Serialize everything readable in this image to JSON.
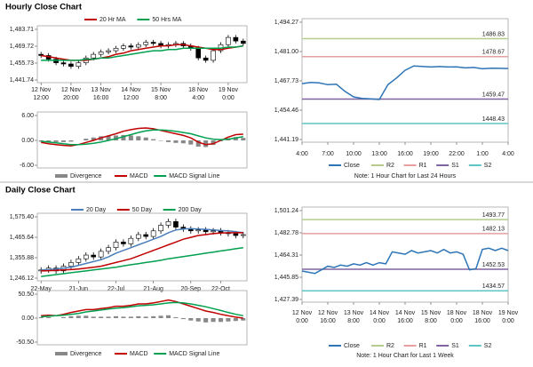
{
  "sections": {
    "hourly": "Hourly Close Chart",
    "daily": "Daily Close Chart"
  },
  "chart_data": [
    {
      "type": "candlestick",
      "open": [
        1463,
        1462,
        1459,
        1456,
        1455,
        1453,
        1456,
        1460,
        1463,
        1465,
        1466,
        1468,
        1470,
        1469,
        1471,
        1473,
        1472,
        1470,
        1471,
        1472,
        1470,
        1468,
        1460,
        1458,
        1466,
        1471,
        1477,
        1474
      ],
      "high": [
        1465,
        1464,
        1461,
        1458,
        1457,
        1458,
        1462,
        1465,
        1467,
        1468,
        1470,
        1472,
        1472,
        1473,
        1475,
        1475,
        1474,
        1473,
        1474,
        1474,
        1472,
        1470,
        1462,
        1468,
        1473,
        1479,
        1479,
        1476
      ],
      "low": [
        1460,
        1457,
        1454,
        1453,
        1451,
        1451,
        1454,
        1458,
        1461,
        1463,
        1464,
        1466,
        1467,
        1467,
        1469,
        1470,
        1468,
        1468,
        1469,
        1468,
        1466,
        1458,
        1456,
        1456,
        1464,
        1469,
        1472,
        1470
      ],
      "close": [
        1462,
        1459,
        1456,
        1455,
        1453,
        1456,
        1460,
        1463,
        1465,
        1466,
        1468,
        1470,
        1469,
        1471,
        1473,
        1472,
        1470,
        1471,
        1472,
        1470,
        1468,
        1460,
        1458,
        1466,
        1471,
        1477,
        1474,
        1472
      ],
      "series": [
        {
          "name": "20 Hr MA",
          "color": "#c00000",
          "values": [
            1462,
            1461,
            1460,
            1459,
            1458,
            1458,
            1458,
            1459,
            1460,
            1461,
            1463,
            1464,
            1466,
            1467,
            1468,
            1469,
            1470,
            1470,
            1471,
            1471,
            1470,
            1469,
            1468,
            1467,
            1467,
            1468,
            1469,
            1470
          ]
        },
        {
          "name": "50 Hrs MA",
          "color": "#00a050",
          "values": [
            1458,
            1458,
            1458,
            1458,
            1458,
            1458,
            1459,
            1459,
            1460,
            1460,
            1461,
            1462,
            1463,
            1464,
            1465,
            1466,
            1466,
            1467,
            1467,
            1468,
            1468,
            1468,
            1468,
            1468,
            1468,
            1469,
            1469,
            1470
          ]
        }
      ],
      "ylim": [
        1441.74,
        1483.71
      ],
      "yticks": [
        {
          "value": 1483.71,
          "label": "1,483.71"
        },
        {
          "value": 1469.72,
          "label": "1,469.72"
        },
        {
          "value": 1455.73,
          "label": "1,455.73"
        },
        {
          "value": 1441.74,
          "label": "1,441.74"
        }
      ],
      "xticks": [
        {
          "value": 0,
          "label": [
            "12 Nov",
            "12:00"
          ]
        },
        {
          "value": 4,
          "label": [
            "12 Nov",
            "20:00"
          ]
        },
        {
          "value": 8,
          "label": [
            "13 Nov",
            "16:00"
          ]
        },
        {
          "value": 12,
          "label": [
            "14 Nov",
            "12:00"
          ]
        },
        {
          "value": 16,
          "label": [
            "15 Nov",
            "8:00"
          ]
        },
        {
          "value": 21,
          "label": [
            "18 Nov",
            "4:00"
          ]
        },
        {
          "value": 25,
          "label": [
            "19 Nov",
            "0:00"
          ]
        }
      ],
      "candle_color": "#000000"
    },
    {
      "type": "macd",
      "series": [
        {
          "name": "Divergence",
          "color": "#888888",
          "style": "bar",
          "values": [
            -0.3,
            -0.4,
            -0.4,
            -0.4,
            -0.3,
            0,
            0.4,
            0.7,
            1,
            1.1,
            1.2,
            1.3,
            1.2,
            1,
            0.7,
            0.3,
            -0.1,
            -0.4,
            -0.6,
            -0.7,
            -1,
            -1.5,
            -1.6,
            -1.1,
            -0.2,
            0.5,
            0.8,
            0.6
          ]
        },
        {
          "name": "MACD",
          "color": "#c00000",
          "style": "line",
          "values": [
            -0.5,
            -0.8,
            -1,
            -1.2,
            -1.3,
            -1,
            -0.5,
            0,
            0.6,
            1.1,
            1.6,
            2.2,
            2.6,
            2.9,
            3,
            2.8,
            2.4,
            2,
            1.6,
            1.2,
            0.6,
            -0.4,
            -1,
            -0.8,
            0,
            0.8,
            1.4,
            1.5
          ]
        },
        {
          "name": "MACD Signal Line",
          "color": "#00a050",
          "style": "line",
          "values": [
            -0.2,
            -0.4,
            -0.6,
            -0.8,
            -1,
            -1,
            -0.9,
            -0.7,
            -0.4,
            0,
            0.4,
            0.9,
            1.4,
            1.9,
            2.3,
            2.5,
            2.5,
            2.4,
            2.2,
            1.9,
            1.6,
            1.1,
            0.6,
            0.3,
            0.2,
            0.3,
            0.6,
            0.9
          ]
        }
      ],
      "ylim": [
        -6,
        6
      ],
      "yticks": [
        {
          "value": 6,
          "label": "6.00"
        },
        {
          "value": 0,
          "label": "0.00"
        },
        {
          "value": -6,
          "label": "-6.00"
        }
      ]
    },
    {
      "type": "line",
      "x": [
        0,
        1,
        2,
        3,
        4,
        5,
        6,
        7,
        8,
        9,
        10,
        11,
        12,
        13,
        14,
        15,
        16,
        17,
        18,
        19,
        20,
        21,
        22,
        23,
        24
      ],
      "series": [
        {
          "name": "Close",
          "color": "#2e75b6",
          "values": [
            1466.5,
            1467,
            1466.8,
            1466,
            1466.2,
            1463,
            1460.5,
            1459.8,
            1459.6,
            1459.3,
            1466,
            1469,
            1472.5,
            1474.5,
            1474.3,
            1474,
            1474.2,
            1474,
            1474.1,
            1473.6,
            1473.8,
            1473.2,
            1473.5,
            1473.4,
            1473.3
          ]
        }
      ],
      "levels": [
        {
          "name": "R2",
          "color": "#b5cc8e",
          "value": 1486.83
        },
        {
          "name": "R1",
          "color": "#e6a0a0",
          "value": 1478.67
        },
        {
          "name": "S1",
          "color": "#8064a2",
          "value": 1459.47
        },
        {
          "name": "S2",
          "color": "#5fc4c4",
          "value": 1448.43
        }
      ],
      "xlim": [
        0,
        24
      ],
      "ylim": [
        1441.19,
        1494.27
      ],
      "yticks": [
        {
          "value": 1494.27,
          "label": "1,494.27"
        },
        {
          "value": 1481.0,
          "label": "1,481.00"
        },
        {
          "value": 1467.73,
          "label": "1,467.73"
        },
        {
          "value": 1454.46,
          "label": "1,454.46"
        },
        {
          "value": 1441.19,
          "label": "1,441.19"
        }
      ],
      "xticks": [
        {
          "value": 0,
          "label": "4:00"
        },
        {
          "value": 3,
          "label": "7:00"
        },
        {
          "value": 6,
          "label": "10:00"
        },
        {
          "value": 9,
          "label": "13:00"
        },
        {
          "value": 12,
          "label": "16:00"
        },
        {
          "value": 15,
          "label": "19:00"
        },
        {
          "value": 18,
          "label": "22:00"
        },
        {
          "value": 21,
          "label": "1:00"
        },
        {
          "value": 24,
          "label": "4:00"
        }
      ],
      "note": "Note: 1 Hour Chart for Last 24 Hours"
    },
    {
      "type": "candlestick",
      "open": [
        1285,
        1290,
        1300,
        1285,
        1310,
        1330,
        1350,
        1370,
        1360,
        1390,
        1410,
        1440,
        1430,
        1460,
        1480,
        1470,
        1500,
        1530,
        1550,
        1520,
        1510,
        1500,
        1505,
        1495,
        1500,
        1490,
        1485,
        1475
      ],
      "high": [
        1305,
        1315,
        1315,
        1325,
        1345,
        1365,
        1385,
        1385,
        1405,
        1425,
        1455,
        1455,
        1475,
        1495,
        1495,
        1515,
        1545,
        1565,
        1565,
        1535,
        1525,
        1520,
        1520,
        1515,
        1515,
        1505,
        1500,
        1495
      ],
      "low": [
        1270,
        1275,
        1270,
        1270,
        1295,
        1315,
        1335,
        1345,
        1345,
        1375,
        1395,
        1415,
        1415,
        1445,
        1455,
        1455,
        1485,
        1515,
        1505,
        1495,
        1485,
        1485,
        1480,
        1480,
        1475,
        1470,
        1460,
        1460
      ],
      "close": [
        1290,
        1300,
        1285,
        1310,
        1330,
        1350,
        1370,
        1360,
        1390,
        1410,
        1440,
        1430,
        1460,
        1480,
        1470,
        1500,
        1530,
        1550,
        1520,
        1510,
        1500,
        1505,
        1495,
        1500,
        1490,
        1485,
        1475,
        1480
      ],
      "series": [
        {
          "name": "20 Day",
          "color": "#4a7ebb",
          "values": [
            1290,
            1292,
            1295,
            1300,
            1305,
            1315,
            1325,
            1335,
            1345,
            1360,
            1380,
            1395,
            1410,
            1425,
            1440,
            1455,
            1470,
            1490,
            1505,
            1510,
            1512,
            1510,
            1508,
            1505,
            1502,
            1500,
            1495,
            1490
          ]
        },
        {
          "name": "50 Day",
          "color": "#c00000",
          "values": [
            1285,
            1286,
            1288,
            1290,
            1292,
            1295,
            1300,
            1305,
            1310,
            1320,
            1330,
            1340,
            1350,
            1365,
            1380,
            1395,
            1410,
            1425,
            1440,
            1455,
            1465,
            1475,
            1480,
            1485,
            1488,
            1490,
            1490,
            1490
          ]
        },
        {
          "name": "200 Day",
          "color": "#00a050",
          "values": [
            1255,
            1260,
            1265,
            1270,
            1275,
            1280,
            1285,
            1290,
            1295,
            1300,
            1305,
            1312,
            1318,
            1324,
            1330,
            1336,
            1342,
            1350,
            1356,
            1362,
            1368,
            1374,
            1380,
            1386,
            1392,
            1398,
            1404,
            1410
          ]
        }
      ],
      "ylim": [
        1246.12,
        1575.4
      ],
      "yticks": [
        {
          "value": 1575.4,
          "label": "1,575.40"
        },
        {
          "value": 1465.64,
          "label": "1,465.64"
        },
        {
          "value": 1355.88,
          "label": "1,355.88"
        },
        {
          "value": 1246.12,
          "label": "1,246.12"
        }
      ],
      "xticks": [
        {
          "value": 0,
          "label": "22-May"
        },
        {
          "value": 5,
          "label": "21-Jun"
        },
        {
          "value": 10,
          "label": "22-Jul"
        },
        {
          "value": 15,
          "label": "21-Aug"
        },
        {
          "value": 20,
          "label": "20-Sep"
        },
        {
          "value": 24,
          "label": "22-Oct"
        }
      ],
      "candle_color": "#000000"
    },
    {
      "type": "macd",
      "series": [
        {
          "name": "Divergence",
          "color": "#888888",
          "style": "bar",
          "values": [
            2,
            2,
            0,
            2,
            4,
            5,
            5,
            3,
            3,
            3,
            4,
            3,
            3,
            4,
            3,
            4,
            5,
            6,
            2,
            -2,
            -5,
            -7,
            -9,
            -8,
            -8,
            -7,
            -6,
            -5
          ]
        },
        {
          "name": "MACD",
          "color": "#c00000",
          "style": "line",
          "values": [
            5,
            6,
            5,
            8,
            12,
            15,
            18,
            18,
            20,
            22,
            25,
            25,
            27,
            30,
            30,
            32,
            35,
            38,
            35,
            30,
            25,
            20,
            15,
            12,
            8,
            5,
            2,
            0
          ]
        },
        {
          "name": "MACD Signal Line",
          "color": "#00a050",
          "style": "line",
          "values": [
            3,
            4,
            5,
            6,
            8,
            10,
            13,
            15,
            17,
            19,
            21,
            22,
            24,
            26,
            27,
            28,
            30,
            32,
            33,
            32,
            30,
            27,
            24,
            20,
            16,
            12,
            8,
            5
          ]
        }
      ],
      "ylim": [
        -50.5,
        50.5
      ],
      "yticks": [
        {
          "value": 50.5,
          "label": "50.50"
        },
        {
          "value": 0,
          "label": "0.00"
        },
        {
          "value": -50.5,
          "label": "-50.50"
        }
      ]
    },
    {
      "type": "line",
      "x": [
        0,
        1,
        2,
        3,
        4,
        5,
        6,
        7,
        8,
        9,
        10,
        11,
        12,
        13,
        14,
        15,
        16,
        17,
        18,
        19,
        20,
        21,
        22,
        23,
        24,
        25,
        26,
        27,
        28,
        29,
        30,
        31,
        32
      ],
      "series": [
        {
          "name": "Close",
          "color": "#2e75b6",
          "values": [
            1451,
            1450,
            1449,
            1452,
            1455,
            1454,
            1456,
            1455,
            1457,
            1456,
            1458,
            1456,
            1458,
            1457,
            1467,
            1466,
            1465,
            1468,
            1466,
            1467,
            1468,
            1466,
            1469,
            1466,
            1467,
            1465,
            1452,
            1453,
            1469,
            1470,
            1468,
            1470,
            1468
          ]
        }
      ],
      "levels": [
        {
          "name": "R2",
          "color": "#b5cc8e",
          "value": 1493.77
        },
        {
          "name": "R1",
          "color": "#e6a0a0",
          "value": 1482.13
        },
        {
          "name": "S1",
          "color": "#8064a2",
          "value": 1452.53
        },
        {
          "name": "S2",
          "color": "#5fc4c4",
          "value": 1434.57
        }
      ],
      "xlim": [
        0,
        32
      ],
      "ylim": [
        1427.39,
        1501.24
      ],
      "yticks": [
        {
          "value": 1501.24,
          "label": "1,501.24"
        },
        {
          "value": 1482.78,
          "label": "1,482.78"
        },
        {
          "value": 1464.31,
          "label": "1,464.31"
        },
        {
          "value": 1445.85,
          "label": "1,445.85"
        },
        {
          "value": 1427.39,
          "label": "1,427.39"
        }
      ],
      "xticks": [
        {
          "value": 0,
          "label": [
            "12 Nov",
            "0:00"
          ]
        },
        {
          "value": 4,
          "label": [
            "12 Nov",
            "16:00"
          ]
        },
        {
          "value": 8,
          "label": [
            "13 Nov",
            "8:00"
          ]
        },
        {
          "value": 12,
          "label": [
            "14 Nov",
            "0:00"
          ]
        },
        {
          "value": 16,
          "label": [
            "14 Nov",
            "16:00"
          ]
        },
        {
          "value": 20,
          "label": [
            "15 Nov",
            "8:00"
          ]
        },
        {
          "value": 24,
          "label": [
            "18 Nov",
            "0:00"
          ]
        },
        {
          "value": 28,
          "label": [
            "18 Nov",
            "16:00"
          ]
        },
        {
          "value": 32,
          "label": [
            "19 Nov",
            "0:00"
          ]
        }
      ],
      "note": "Note: 1 Hour Chart for Last 1 Week"
    }
  ]
}
